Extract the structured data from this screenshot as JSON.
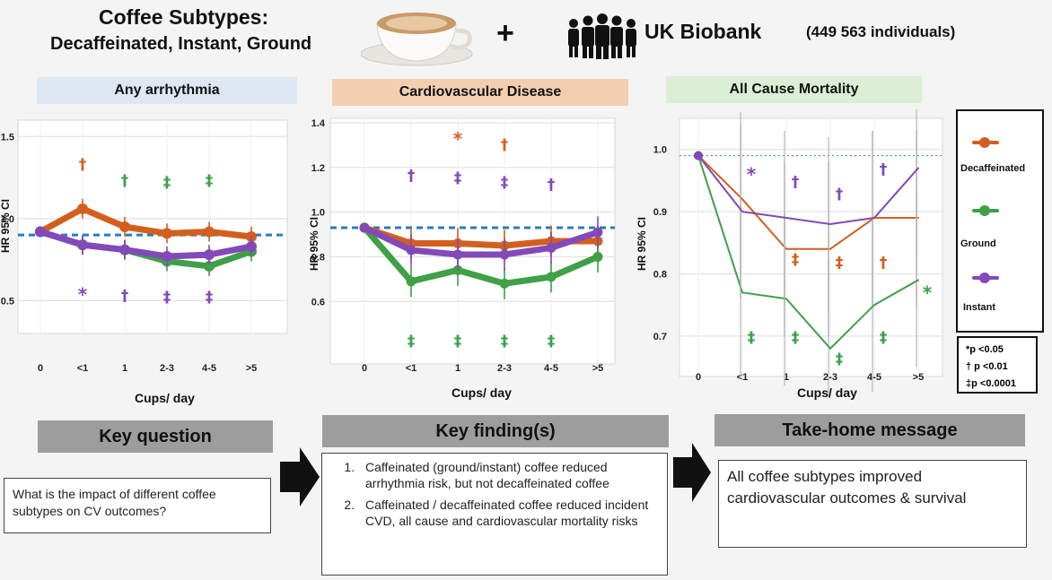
{
  "header": {
    "title": "Coffee Subtypes:",
    "subtitle": "Decaffeinated, Instant, Ground",
    "plus": "+",
    "biobank": "UK Biobank",
    "individuals": "(449 563 individuals)"
  },
  "colors": {
    "decaffeinated": "#d35f1e",
    "ground": "#3fa048",
    "instant": "#8449b8",
    "arrhythmia_bg": "#dde8f4",
    "cvd_bg": "#f3cfb2",
    "mortality_bg": "#dcefd6",
    "reference_line": "#2b7bb9"
  },
  "chart_data": [
    {
      "type": "line",
      "title": "Any arrhythmia",
      "ylabel": "HR 95% CI",
      "xlabel": "Cups/ day",
      "categories": [
        "0",
        "<1",
        "1",
        "2-3",
        "4-5",
        ">5"
      ],
      "y_ticks": [
        "1.5",
        "1.0",
        "0.5"
      ],
      "y_tick_values": [
        1.5,
        1.0,
        0.5
      ],
      "ylim": [
        0.3,
        1.6
      ],
      "reference": 0.9,
      "series": [
        {
          "name": "Decaffeinated",
          "values": [
            0.92,
            1.06,
            0.95,
            0.91,
            0.92,
            0.89
          ]
        },
        {
          "name": "Ground",
          "values": [
            0.92,
            0.84,
            0.81,
            0.74,
            0.71,
            0.8
          ]
        },
        {
          "name": "Instant",
          "values": [
            0.92,
            0.84,
            0.81,
            0.77,
            0.78,
            0.83
          ]
        }
      ],
      "annotations": [
        {
          "x": "<1",
          "y": 1.3,
          "text": "†",
          "series": "Decaffeinated"
        },
        {
          "x": "1",
          "y": 1.2,
          "text": "†",
          "series": "Ground"
        },
        {
          "x": "2-3",
          "y": 1.19,
          "text": "‡",
          "series": "Ground"
        },
        {
          "x": "4-5",
          "y": 1.2,
          "text": "‡",
          "series": "Ground"
        },
        {
          "x": "<1",
          "y": 0.5,
          "text": "*",
          "series": "Instant"
        },
        {
          "x": "1",
          "y": 0.5,
          "text": "†",
          "series": "Instant"
        },
        {
          "x": "2-3",
          "y": 0.49,
          "text": "‡",
          "series": "Instant"
        },
        {
          "x": "4-5",
          "y": 0.49,
          "text": "‡",
          "series": "Instant"
        }
      ]
    },
    {
      "type": "line",
      "title": "Cardiovascular Disease",
      "ylabel": "HR 95% CI",
      "xlabel": "Cups/ day",
      "categories": [
        "0",
        "<1",
        "1",
        "2-3",
        "4-5",
        ">5"
      ],
      "y_ticks": [
        "1.4",
        "1.2",
        "1.0",
        "0.8",
        "0.6"
      ],
      "y_tick_values": [
        1.4,
        1.2,
        1.0,
        0.8,
        0.6
      ],
      "ylim": [
        0.32,
        1.42
      ],
      "reference": 0.93,
      "series": [
        {
          "name": "Decaffeinated",
          "values": [
            0.93,
            0.86,
            0.86,
            0.85,
            0.87,
            0.87
          ]
        },
        {
          "name": "Ground",
          "values": [
            0.93,
            0.69,
            0.74,
            0.68,
            0.71,
            0.8
          ]
        },
        {
          "name": "Instant",
          "values": [
            0.93,
            0.83,
            0.81,
            0.81,
            0.84,
            0.91
          ]
        }
      ],
      "annotations": [
        {
          "x": "1",
          "y": 1.3,
          "text": "*",
          "series": "Decaffeinated"
        },
        {
          "x": "2-3",
          "y": 1.28,
          "text": "†",
          "series": "Decaffeinated"
        },
        {
          "x": "<1",
          "y": 1.14,
          "text": "†",
          "series": "Instant"
        },
        {
          "x": "1",
          "y": 1.13,
          "text": "‡",
          "series": "Instant"
        },
        {
          "x": "2-3",
          "y": 1.11,
          "text": "‡",
          "series": "Instant"
        },
        {
          "x": "4-5",
          "y": 1.1,
          "text": "†",
          "series": "Instant"
        },
        {
          "x": "<1",
          "y": 0.4,
          "text": "‡",
          "series": "Ground"
        },
        {
          "x": "1",
          "y": 0.4,
          "text": "‡",
          "series": "Ground"
        },
        {
          "x": "2-3",
          "y": 0.4,
          "text": "‡",
          "series": "Ground"
        },
        {
          "x": "4-5",
          "y": 0.4,
          "text": "‡",
          "series": "Ground"
        }
      ]
    },
    {
      "type": "line",
      "title": "All Cause Mortality",
      "ylabel": "HR 95% CI",
      "xlabel": "Cups/ day",
      "categories": [
        "0",
        "<1",
        "1",
        "2-3",
        "4-5",
        ">5"
      ],
      "y_ticks": [
        "1.0",
        "0.9",
        "0.8",
        "0.7"
      ],
      "y_tick_values": [
        1.0,
        0.9,
        0.8,
        0.7
      ],
      "ylim": [
        0.635,
        1.05
      ],
      "reference": 0.99,
      "series": [
        {
          "name": "Decaffeinated",
          "values": [
            0.99,
            0.92,
            0.84,
            0.84,
            0.89,
            0.89
          ]
        },
        {
          "name": "Ground",
          "values": [
            0.99,
            0.77,
            0.76,
            0.68,
            0.75,
            0.79
          ]
        },
        {
          "name": "Instant",
          "values": [
            0.99,
            0.9,
            0.89,
            0.88,
            0.89,
            0.97
          ]
        }
      ],
      "annotations": [
        {
          "x": "<1",
          "y": 0.95,
          "text": "*",
          "series": "Instant"
        },
        {
          "x": "1",
          "y": 0.94,
          "text": "†",
          "series": "Instant"
        },
        {
          "x": "2-3",
          "y": 0.92,
          "text": "†",
          "series": "Instant"
        },
        {
          "x": "4-5",
          "y": 0.96,
          "text": "†",
          "series": "Instant"
        },
        {
          "x": "1",
          "y": 0.815,
          "text": "‡",
          "series": "Decaffeinated"
        },
        {
          "x": "2-3",
          "y": 0.81,
          "text": "‡",
          "series": "Decaffeinated"
        },
        {
          "x": "4-5",
          "y": 0.81,
          "text": "†",
          "series": "Decaffeinated"
        },
        {
          "x": "<1",
          "y": 0.69,
          "text": "‡",
          "series": "Ground"
        },
        {
          "x": "1",
          "y": 0.69,
          "text": "‡",
          "series": "Ground"
        },
        {
          "x": "2-3",
          "y": 0.655,
          "text": "‡",
          "series": "Ground"
        },
        {
          "x": "4-5",
          "y": 0.69,
          "text": "‡",
          "series": "Ground"
        },
        {
          "x": ">5",
          "y": 0.76,
          "text": "*",
          "series": "Ground"
        }
      ]
    }
  ],
  "legend": {
    "decaffeinated": "Decaffeinated",
    "ground": "Ground",
    "instant": "Instant"
  },
  "significance": {
    "p05": "*p <0.05",
    "p01": "† p <0.01",
    "p0001": "‡p <0.0001"
  },
  "key_question": {
    "heading": "Key question",
    "text": "What is the impact of different coffee  subtypes on CV outcomes?"
  },
  "key_findings": {
    "heading": "Key finding(s)",
    "items": [
      "Caffeinated (ground/instant) coffee reduced arrhythmia risk, but not decaffeinated coffee",
      "Caffeinated / decaffeinated coffee reduced incident CVD, all cause and cardiovascular mortality risks"
    ]
  },
  "take_home": {
    "heading": "Take-home message",
    "text": "All coffee subtypes improved cardiovascular outcomes & survival"
  }
}
